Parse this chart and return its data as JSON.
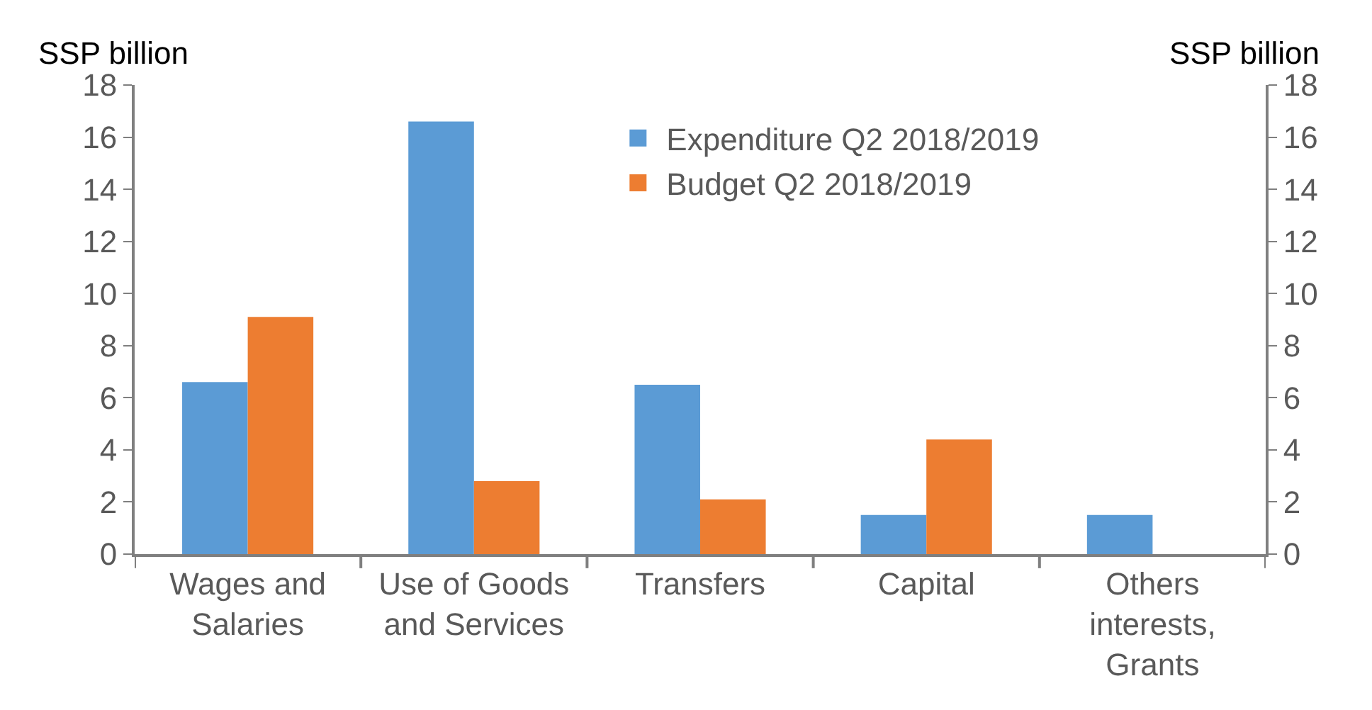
{
  "chart_data": {
    "type": "bar",
    "categories": [
      "Wages and Salaries",
      "Use of Goods and Services",
      "Transfers",
      "Capital",
      "Others interests, Grants"
    ],
    "series": [
      {
        "name": "Expenditure Q2 2018/2019",
        "color": "#5b9bd5",
        "values": [
          6.6,
          16.6,
          6.5,
          1.5,
          1.5
        ]
      },
      {
        "name": "Budget Q2 2018/2019",
        "color": "#ed7d31",
        "values": [
          9.1,
          2.8,
          2.1,
          4.4,
          null
        ]
      }
    ],
    "ylabel": "SSP billion",
    "y2label": "SSP billion",
    "ylim": [
      0,
      18
    ],
    "yticks": [
      0,
      2,
      4,
      6,
      8,
      10,
      12,
      14,
      16,
      18
    ],
    "y2lim": [
      0,
      18
    ],
    "y2ticks": [
      0,
      2,
      4,
      6,
      8,
      10,
      12,
      14,
      16,
      18
    ],
    "legend": "top"
  }
}
